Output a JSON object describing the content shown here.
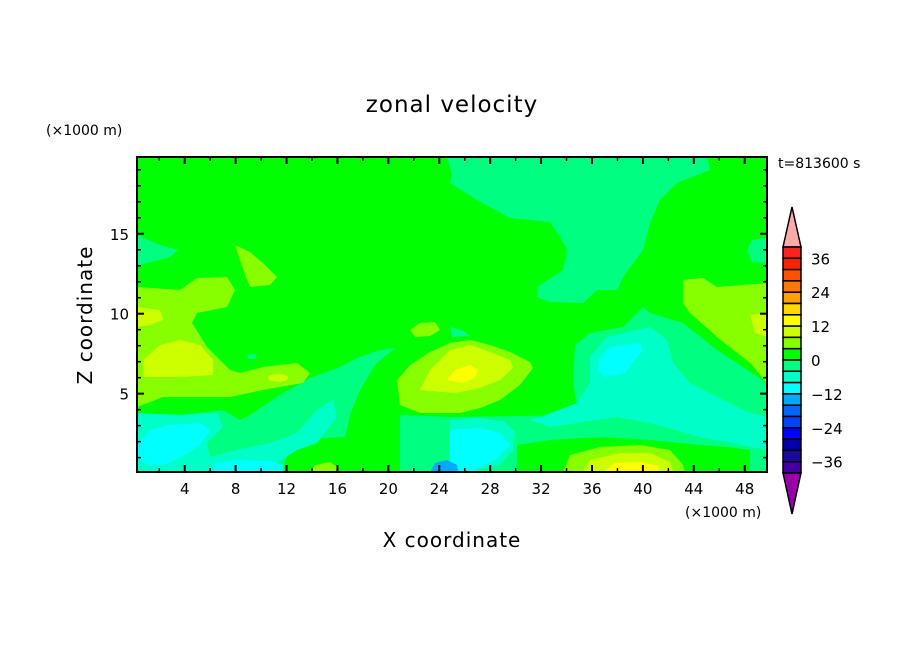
{
  "chart_data": {
    "type": "heatmap",
    "subtype": "filled-contour",
    "title": "zonal velocity",
    "xlabel": "X coordinate",
    "ylabel": "Z coordinate",
    "x_unit_label": "(×1000 m)",
    "y_unit_label": "(×1000 m)",
    "time_label": "t=813600 s",
    "xlim": [
      0.25,
      49.75
    ],
    "ylim": [
      0.1,
      19.8
    ],
    "x_ticks": [
      4,
      8,
      12,
      16,
      20,
      24,
      28,
      32,
      36,
      40,
      44,
      48
    ],
    "y_ticks": [
      5,
      10,
      15
    ],
    "grid": false,
    "colorbar": {
      "placement": "right",
      "levels": [
        40,
        36,
        32,
        28,
        24,
        20,
        16,
        12,
        8,
        4,
        0,
        -4,
        -8,
        -12,
        -16,
        -20,
        -24,
        -28,
        -32,
        -36,
        -40
      ],
      "tick_labels": [
        "36",
        "24",
        "12",
        "0",
        "−12",
        "−24",
        "−36"
      ],
      "tick_values": [
        36,
        24,
        12,
        0,
        -12,
        -24,
        -36
      ],
      "colors": [
        "#ff2020",
        "#ff2000",
        "#ff5000",
        "#ff7800",
        "#ffa000",
        "#ffd800",
        "#ffff00",
        "#ccff00",
        "#88ff00",
        "#00ff00",
        "#00ff80",
        "#00ffc8",
        "#00ffff",
        "#00aaff",
        "#0066ff",
        "#0044ff",
        "#0000ff",
        "#0000aa",
        "#1a0aa0",
        "#4400a0"
      ],
      "over_color": "#ffaaaa",
      "under_color": "#9900aa"
    },
    "field_summary": {
      "range_approx": [
        -16,
        16
      ],
      "positive_max_location": {
        "x": 26,
        "z": 6.5
      },
      "positive_max_location_2": {
        "x": 39,
        "z": 0.5
      },
      "negative_min_location": {
        "x": 24.5,
        "z": 0.3
      }
    }
  }
}
